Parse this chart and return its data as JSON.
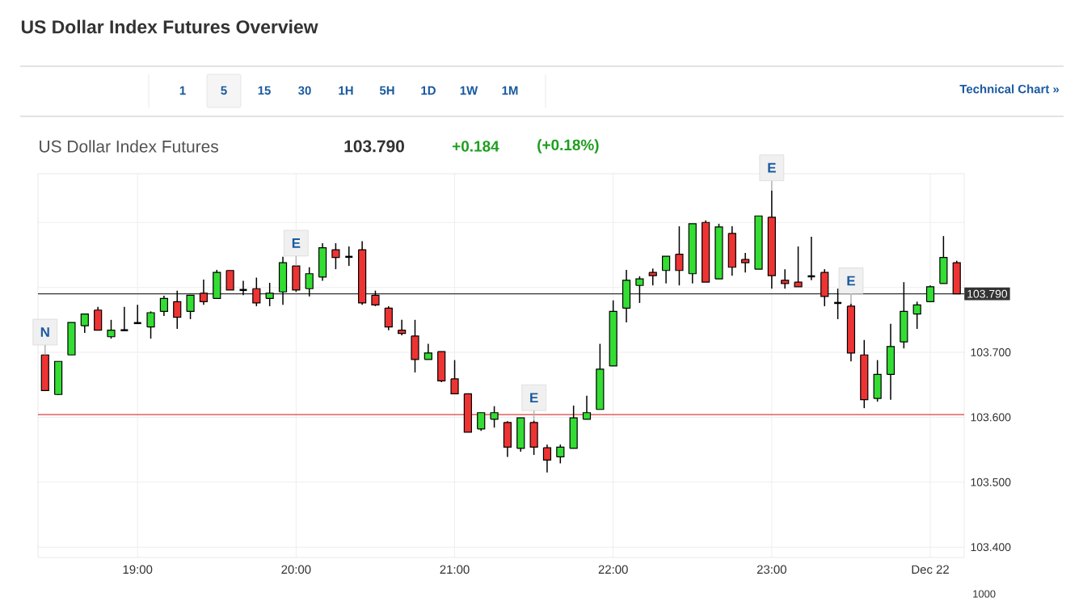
{
  "chart_data": {
    "type": "candlestick",
    "title": "US Dollar Index Futures Overview",
    "subtitle": "US Dollar Index Futures",
    "x": [
      18.4167,
      18.5,
      18.5833,
      18.6667,
      18.75,
      18.8333,
      18.9167,
      19,
      19.0833,
      19.1667,
      19.25,
      19.3333,
      19.4167,
      19.5,
      19.5833,
      19.6667,
      19.75,
      19.8333,
      19.9167,
      20,
      20.0833,
      20.1667,
      20.25,
      20.3333,
      20.4167,
      20.5,
      20.5833,
      20.6667,
      20.75,
      20.8333,
      20.9167,
      21,
      21.0833,
      21.1667,
      21.25,
      21.3333,
      21.4167,
      21.5,
      21.5833,
      21.6667,
      21.75,
      21.8333,
      21.9167,
      22,
      22.0833,
      22.1667,
      22.25,
      22.3333,
      22.4167,
      22.5,
      22.5833,
      22.6667,
      22.75,
      22.8333,
      22.9167,
      23,
      23.0833,
      23.1667,
      23.25,
      23.3333,
      23.4167,
      23.5,
      23.5833,
      23.6667,
      23.75,
      23.8333,
      23.9167,
      24,
      24.0833,
      24.1667
    ],
    "ohlc": [
      [
        103.696,
        103.696,
        103.641,
        103.641
      ],
      [
        103.635,
        103.686,
        103.634,
        103.686
      ],
      [
        103.696,
        103.746,
        103.696,
        103.746
      ],
      [
        103.741,
        103.759,
        103.73,
        103.759
      ],
      [
        103.765,
        103.77,
        103.734,
        103.734
      ],
      [
        103.724,
        103.75,
        103.721,
        103.734
      ],
      [
        103.734,
        103.77,
        103.734,
        103.734
      ],
      [
        103.745,
        103.773,
        103.745,
        103.745
      ],
      [
        103.739,
        103.763,
        103.721,
        103.761
      ],
      [
        103.763,
        103.787,
        103.756,
        103.783
      ],
      [
        103.778,
        103.795,
        103.736,
        103.754
      ],
      [
        103.763,
        103.788,
        103.751,
        103.788
      ],
      [
        103.791,
        103.812,
        103.773,
        103.778
      ],
      [
        103.783,
        103.827,
        103.783,
        103.823
      ],
      [
        103.826,
        103.826,
        103.796,
        103.796
      ],
      [
        103.796,
        103.81,
        103.788,
        103.796
      ],
      [
        103.798,
        103.815,
        103.771,
        103.776
      ],
      [
        103.783,
        103.807,
        103.771,
        103.791
      ],
      [
        103.793,
        103.847,
        103.773,
        103.838
      ],
      [
        103.833,
        103.833,
        103.793,
        103.796
      ],
      [
        103.798,
        103.831,
        103.786,
        103.821
      ],
      [
        103.816,
        103.868,
        103.81,
        103.861
      ],
      [
        103.858,
        103.868,
        103.828,
        103.846
      ],
      [
        103.847,
        103.863,
        103.833,
        103.847
      ],
      [
        103.858,
        103.871,
        103.773,
        103.776
      ],
      [
        103.788,
        103.795,
        103.771,
        103.773
      ],
      [
        103.768,
        103.771,
        103.734,
        103.739
      ],
      [
        103.734,
        103.75,
        103.726,
        103.729
      ],
      [
        103.725,
        103.75,
        103.669,
        103.689
      ],
      [
        103.689,
        103.713,
        103.689,
        103.699
      ],
      [
        103.701,
        103.701,
        103.654,
        103.656
      ],
      [
        103.659,
        103.688,
        103.636,
        103.636
      ],
      [
        103.636,
        103.636,
        103.577,
        103.577
      ],
      [
        103.582,
        103.607,
        103.579,
        103.607
      ],
      [
        103.597,
        103.617,
        103.584,
        103.607
      ],
      [
        103.592,
        103.594,
        103.539,
        103.554
      ],
      [
        103.552,
        103.599,
        103.547,
        103.599
      ],
      [
        103.592,
        103.595,
        103.542,
        103.554
      ],
      [
        103.553,
        103.558,
        103.515,
        103.534
      ],
      [
        103.539,
        103.558,
        103.529,
        103.554
      ],
      [
        103.552,
        103.618,
        103.552,
        103.599
      ],
      [
        103.597,
        103.633,
        103.597,
        103.607
      ],
      [
        103.612,
        103.713,
        103.612,
        103.674
      ],
      [
        103.679,
        103.78,
        103.679,
        103.763
      ],
      [
        103.768,
        103.827,
        103.746,
        103.811
      ],
      [
        103.803,
        103.817,
        103.776,
        103.813
      ],
      [
        103.823,
        103.829,
        103.803,
        103.818
      ],
      [
        103.826,
        103.848,
        103.806,
        103.848
      ],
      [
        103.851,
        103.894,
        103.803,
        103.826
      ],
      [
        103.821,
        103.898,
        103.806,
        103.898
      ],
      [
        103.9,
        103.903,
        103.808,
        103.808
      ],
      [
        103.813,
        103.898,
        103.813,
        103.893
      ],
      [
        103.883,
        103.894,
        103.818,
        103.831
      ],
      [
        103.843,
        103.853,
        103.823,
        103.838
      ],
      [
        103.828,
        103.91,
        103.828,
        103.91
      ],
      [
        103.908,
        103.949,
        103.798,
        103.818
      ],
      [
        103.811,
        103.828,
        103.798,
        103.806
      ],
      [
        103.808,
        103.863,
        103.801,
        103.801
      ],
      [
        103.817,
        103.878,
        103.811,
        103.817
      ],
      [
        103.823,
        103.828,
        103.771,
        103.786
      ],
      [
        103.776,
        103.798,
        103.751,
        103.776
      ],
      [
        103.771,
        103.775,
        103.686,
        103.699
      ],
      [
        103.696,
        103.719,
        103.614,
        103.627
      ],
      [
        103.629,
        103.688,
        103.624,
        103.666
      ],
      [
        103.666,
        103.744,
        103.627,
        103.709
      ],
      [
        103.716,
        103.808,
        103.706,
        103.763
      ],
      [
        103.759,
        103.778,
        103.736,
        103.773
      ],
      [
        103.778,
        103.803,
        103.778,
        103.801
      ],
      [
        103.806,
        103.879,
        103.806,
        103.846
      ],
      [
        103.838,
        103.841,
        103.79,
        103.79
      ]
    ],
    "colors": [
      "#ee3333",
      "#33dd33",
      "#33dd33",
      "#33dd33",
      "#ee3333",
      "#33dd33",
      "#000000",
      "#000000",
      "#33dd33",
      "#33dd33",
      "#ee3333",
      "#33dd33",
      "#ee3333",
      "#33dd33",
      "#ee3333",
      "#000000",
      "#ee3333",
      "#33dd33",
      "#33dd33",
      "#ee3333",
      "#33dd33",
      "#33dd33",
      "#ee3333",
      "#000000",
      "#ee3333",
      "#ee3333",
      "#ee3333",
      "#ee3333",
      "#ee3333",
      "#33dd33",
      "#ee3333",
      "#ee3333",
      "#ee3333",
      "#33dd33",
      "#33dd33",
      "#ee3333",
      "#33dd33",
      "#ee3333",
      "#ee3333",
      "#33dd33",
      "#33dd33",
      "#33dd33",
      "#33dd33",
      "#33dd33",
      "#33dd33",
      "#33dd33",
      "#ee3333",
      "#33dd33",
      "#ee3333",
      "#33dd33",
      "#ee3333",
      "#33dd33",
      "#ee3333",
      "#ee3333",
      "#33dd33",
      "#ee3333",
      "#ee3333",
      "#ee3333",
      "#000000",
      "#ee3333",
      "#000000",
      "#ee3333",
      "#ee3333",
      "#33dd33",
      "#33dd33",
      "#33dd33",
      "#33dd33",
      "#33dd33",
      "#33dd33",
      "#ee3333"
    ],
    "xlim": [
      18.372,
      24.214
    ],
    "xticks": [
      {
        "value": 19,
        "label": "19:00"
      },
      {
        "value": 20,
        "label": "20:00"
      },
      {
        "value": 21,
        "label": "21:00"
      },
      {
        "value": 22,
        "label": "22:00"
      },
      {
        "value": 23,
        "label": "23:00"
      },
      {
        "value": 24,
        "label": "Dec 22"
      }
    ],
    "ylim": [
      103.384,
      103.975
    ],
    "yticks": [
      {
        "value": 103.4,
        "label": "103.400"
      },
      {
        "value": 103.5,
        "label": "103.500"
      },
      {
        "value": 103.6,
        "label": "103.600"
      },
      {
        "value": 103.7,
        "label": "103.700"
      },
      {
        "value": 103.8,
        "label": null
      },
      {
        "value": 103.9,
        "label": null
      }
    ],
    "grid": true,
    "ref_lines": [
      {
        "axis": "y",
        "value": 103.79,
        "label": "103.790",
        "color": "#333333"
      },
      {
        "axis": "y",
        "value": 103.604,
        "color": "#d94040"
      }
    ],
    "annotations": [
      "103.790",
      "+0.184",
      "(+0.18%)",
      "Technical Chart »",
      "1",
      "5",
      "15",
      "30",
      "1H",
      "5H",
      "1D",
      "1W",
      "1M",
      "1000",
      {
        "text": "N",
        "x": 18.4167,
        "y": 103.696
      },
      {
        "text": "E",
        "x": 20,
        "y": 103.833
      },
      {
        "text": "E",
        "x": 21.5,
        "y": 103.595
      },
      {
        "text": "E",
        "x": 23,
        "y": 103.949
      },
      {
        "text": "E",
        "x": 23.5,
        "y": 103.775
      }
    ]
  }
}
